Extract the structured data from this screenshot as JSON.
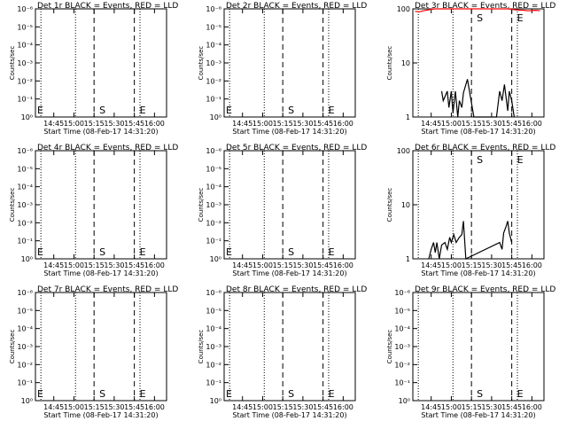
{
  "common": {
    "xticks": [
      "14:45",
      "15:00",
      "15:15",
      "15:30",
      "15:45",
      "16:00"
    ],
    "xlabel": "Start Time (08-Feb-17 14:31:20)",
    "ylabel": "Counts/sec",
    "start_marker": "S",
    "end_marker": "E",
    "event_color": "#000000",
    "lld_color": "#ff0000"
  },
  "chart_data": [
    {
      "type": "line",
      "title": "Det 1r BLACK = Events, RED = LLD",
      "yscale": "log",
      "ylim": [
        1,
        1e-06
      ],
      "yticks": [
        "10⁰",
        "10⁻¹",
        "10⁻²",
        "10⁻³",
        "10⁻⁴",
        "10⁻⁵",
        "10⁻⁶"
      ],
      "xticks": [
        "14:45",
        "15:00",
        "15:15",
        "15:30",
        "15:45",
        "16:00"
      ],
      "xlabel": "Start Time (08-Feb-17 14:31:20)",
      "ylabel": "Counts/sec",
      "markers": [
        {
          "label": "E",
          "x": "14:31"
        },
        {
          "label": "S",
          "x": "15:15"
        },
        {
          "label": "E",
          "x": "15:45"
        }
      ],
      "series": []
    },
    {
      "type": "line",
      "title": "Det 2r BLACK = Events, RED = LLD",
      "yscale": "log",
      "ylim": [
        1,
        1e-06
      ],
      "yticks": [
        "10⁰",
        "10⁻¹",
        "10⁻²",
        "10⁻³",
        "10⁻⁴",
        "10⁻⁵",
        "10⁻⁶"
      ],
      "xticks": [
        "14:45",
        "15:00",
        "15:15",
        "15:30",
        "15:45",
        "16:00"
      ],
      "xlabel": "Start Time (08-Feb-17 14:31:20)",
      "ylabel": "Counts/sec",
      "markers": [
        {
          "label": "E",
          "x": "14:31"
        },
        {
          "label": "S",
          "x": "15:15"
        },
        {
          "label": "E",
          "x": "15:45"
        }
      ],
      "series": []
    },
    {
      "type": "line",
      "title": "Det 3r BLACK = Events, RED = LLD",
      "yscale": "log",
      "ylim": [
        1,
        100
      ],
      "yticks": [
        "1",
        "10",
        "100"
      ],
      "xticks": [
        "14:45",
        "15:00",
        "15:15",
        "15:30",
        "15:45",
        "16:00"
      ],
      "xlabel": "Start Time (08-Feb-17 14:31:20)",
      "ylabel": "Counts/sec",
      "markers": [
        {
          "label": "S",
          "x": "15:15"
        },
        {
          "label": "E",
          "x": "15:45"
        }
      ],
      "series": [
        {
          "role": "events",
          "x": [
            14.88,
            14.9,
            14.95,
            14.97,
            15.0,
            15.02,
            15.05,
            15.08,
            15.1,
            15.13,
            15.15,
            15.2,
            15.28,
            15.3,
            15.33,
            15.36,
            15.4,
            15.42,
            15.45,
            15.48,
            15.5,
            15.53,
            15.56,
            15.6,
            15.63,
            15.66,
            15.7,
            15.72,
            15.75,
            15.78
          ],
          "y": [
            3,
            2,
            3,
            1.5,
            3,
            1.2,
            3,
            1,
            2,
            1.5,
            2.8,
            5,
            0,
            0,
            0,
            0,
            0,
            0,
            0,
            0,
            0,
            0,
            0,
            3,
            2,
            4,
            1.3,
            3,
            2,
            1
          ]
        },
        {
          "role": "lld",
          "x": [
            14.55,
            14.6,
            14.65,
            14.7,
            14.75,
            14.8,
            14.85,
            14.9,
            15.7,
            15.75,
            15.8,
            15.85,
            15.9,
            15.95,
            16.0,
            16.05,
            16.1
          ],
          "y": [
            90,
            88,
            92,
            95,
            98,
            100,
            100,
            100,
            100,
            98,
            96,
            95,
            94,
            92,
            93,
            94,
            92
          ]
        }
      ]
    },
    {
      "type": "line",
      "title": "Det 4r BLACK = Events, RED = LLD",
      "yscale": "log",
      "ylim": [
        1,
        1e-06
      ],
      "yticks": [
        "10⁰",
        "10⁻¹",
        "10⁻²",
        "10⁻³",
        "10⁻⁴",
        "10⁻⁵",
        "10⁻⁶"
      ],
      "xticks": [
        "14:45",
        "15:00",
        "15:15",
        "15:30",
        "15:45",
        "16:00"
      ],
      "xlabel": "Start Time (08-Feb-17 14:31:20)",
      "ylabel": "Counts/sec",
      "markers": [
        {
          "label": "E",
          "x": "14:31"
        },
        {
          "label": "S",
          "x": "15:15"
        },
        {
          "label": "E",
          "x": "15:45"
        }
      ],
      "series": []
    },
    {
      "type": "line",
      "title": "Det 5r BLACK = Events, RED = LLD",
      "yscale": "log",
      "ylim": [
        1,
        1e-06
      ],
      "yticks": [
        "10⁰",
        "10⁻¹",
        "10⁻²",
        "10⁻³",
        "10⁻⁴",
        "10⁻⁵",
        "10⁻⁶"
      ],
      "xticks": [
        "14:45",
        "15:00",
        "15:15",
        "15:30",
        "15:45",
        "16:00"
      ],
      "xlabel": "Start Time (08-Feb-17 14:31:20)",
      "ylabel": "Counts/sec",
      "markers": [
        {
          "label": "E",
          "x": "14:31"
        },
        {
          "label": "S",
          "x": "15:15"
        },
        {
          "label": "E",
          "x": "15:45"
        }
      ],
      "series": []
    },
    {
      "type": "line",
      "title": "Det 6r BLACK = Events, RED = LLD",
      "yscale": "log",
      "ylim": [
        1,
        100
      ],
      "yticks": [
        "1",
        "10",
        "100"
      ],
      "xticks": [
        "14:45",
        "15:00",
        "15:15",
        "15:30",
        "15:45",
        "16:00"
      ],
      "xlabel": "Start Time (08-Feb-17 14:31:20)",
      "ylabel": "Counts/sec",
      "markers": [
        {
          "label": "S",
          "x": "15:15"
        },
        {
          "label": "E",
          "x": "15:45"
        }
      ],
      "series": [
        {
          "role": "events",
          "x": [
            14.72,
            14.75,
            14.78,
            14.8,
            14.82,
            14.85,
            14.88,
            14.92,
            14.95,
            14.98,
            15.0,
            15.03,
            15.06,
            15.1,
            15.13,
            15.15,
            15.18,
            15.6,
            15.63,
            15.65,
            15.68,
            15.7,
            15.72,
            15.75
          ],
          "y": [
            1,
            1.5,
            2,
            1.3,
            2,
            1,
            1.8,
            2,
            1.5,
            2.5,
            2,
            2.8,
            2,
            2.5,
            2.8,
            5,
            0,
            2,
            1.5,
            3,
            4,
            5,
            3,
            2
          ]
        },
        {
          "role": "lld",
          "x": [],
          "y": []
        }
      ]
    },
    {
      "type": "line",
      "title": "Det 7r BLACK = Events, RED = LLD",
      "yscale": "log",
      "ylim": [
        1,
        1e-06
      ],
      "yticks": [
        "10⁰",
        "10⁻¹",
        "10⁻²",
        "10⁻³",
        "10⁻⁴",
        "10⁻⁵",
        "10⁻⁶"
      ],
      "xticks": [
        "14:45",
        "15:00",
        "15:15",
        "15:30",
        "15:45",
        "16:00"
      ],
      "xlabel": "Start Time (08-Feb-17 14:31:20)",
      "ylabel": "Counts/sec",
      "markers": [
        {
          "label": "E",
          "x": "14:31"
        },
        {
          "label": "S",
          "x": "15:15"
        },
        {
          "label": "E",
          "x": "15:45"
        }
      ],
      "series": []
    },
    {
      "type": "line",
      "title": "Det 8r BLACK = Events, RED = LLD",
      "yscale": "log",
      "ylim": [
        1,
        1e-06
      ],
      "yticks": [
        "10⁰",
        "10⁻¹",
        "10⁻²",
        "10⁻³",
        "10⁻⁴",
        "10⁻⁵",
        "10⁻⁶"
      ],
      "xticks": [
        "14:45",
        "15:00",
        "15:15",
        "15:30",
        "15:45",
        "16:00"
      ],
      "xlabel": "Start Time (08-Feb-17 14:31:20)",
      "ylabel": "Counts/sec",
      "markers": [
        {
          "label": "E",
          "x": "14:31"
        },
        {
          "label": "S",
          "x": "15:15"
        },
        {
          "label": "E",
          "x": "15:45"
        }
      ],
      "series": []
    },
    {
      "type": "line",
      "title": "Det 9r BLACK = Events, RED = LLD",
      "yscale": "log",
      "ylim": [
        1,
        1e-06
      ],
      "yticks": [
        "10⁰",
        "10⁻¹",
        "10⁻²",
        "10⁻³",
        "10⁻⁴",
        "10⁻⁵",
        "10⁻⁶"
      ],
      "xticks": [
        "14:45",
        "15:00",
        "15:15",
        "15:30",
        "15:45",
        "16:00"
      ],
      "xlabel": "Start Time (08-Feb-17 14:31:20)",
      "ylabel": "Counts/sec",
      "markers": [
        {
          "label": "S",
          "x": "15:15"
        },
        {
          "label": "E",
          "x": "15:45"
        }
      ],
      "series": []
    }
  ]
}
